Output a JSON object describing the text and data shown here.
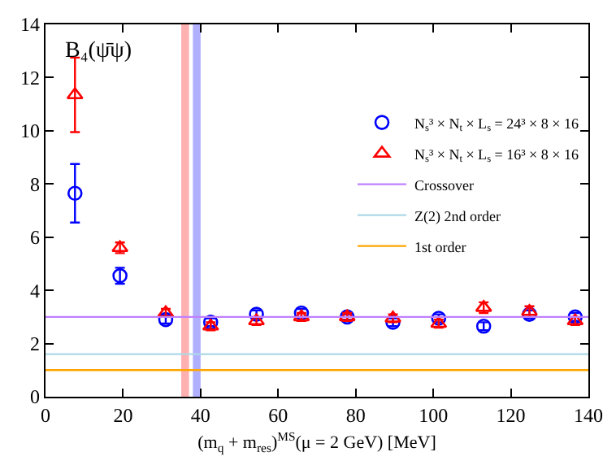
{
  "chart_data": {
    "type": "scatter",
    "title": "B₄(ψ̄ψ)",
    "xlabel": "(m$_{q}$ + m$_{res}$)$^{MS}$(μ = 2 GeV) [MeV]",
    "x": [
      7.6,
      19.2,
      31,
      42.6,
      54.4,
      66,
      77.8,
      89.6,
      101.4,
      113,
      124.8,
      136.6
    ],
    "series": [
      {
        "name": "N$_{s}$³ × N$_{t}$ × L$_{s}$ = 24³ × 8 × 16",
        "color": "#0000ff",
        "marker": "circle",
        "values": [
          7.65,
          4.55,
          2.9,
          2.8,
          3.1,
          3.15,
          3.0,
          2.8,
          2.95,
          2.65,
          3.1,
          3.0
        ],
        "errors": [
          1.1,
          0.3,
          0.15,
          0.15,
          0.15,
          0.15,
          0.1,
          0.15,
          0.15,
          0.15,
          0.15,
          0.15
        ]
      },
      {
        "name": "N$_{s}$³ × N$_{t}$ × L$_{s}$ = 16³ × 8 × 16",
        "color": "#ff0000",
        "marker": "triangle",
        "values": [
          11.35,
          5.6,
          3.15,
          2.65,
          2.85,
          3.0,
          3.0,
          2.95,
          2.75,
          3.35,
          3.2,
          2.85
        ],
        "errors": [
          1.4,
          0.2,
          0.15,
          0.15,
          0.15,
          0.15,
          0.15,
          0.15,
          0.15,
          0.2,
          0.2,
          0.15
        ]
      }
    ],
    "ref_lines": [
      {
        "axis": "y",
        "value": 3.0,
        "label": "Crossover",
        "color": "#c080ff"
      },
      {
        "axis": "y",
        "value": 1.6,
        "label": "Z(2) 2nd order",
        "color": "#add8e6"
      },
      {
        "axis": "y",
        "value": 1.0,
        "label": "1st order",
        "color": "#ffa500"
      }
    ],
    "bands": [
      {
        "axis": "x",
        "from": 35,
        "to": 37,
        "color": "#ffb0b0"
      },
      {
        "axis": "x",
        "from": 38,
        "to": 40,
        "color": "#b0b0ff"
      }
    ],
    "xlim": [
      0,
      140
    ],
    "xticks": [
      0,
      20,
      40,
      60,
      80,
      100,
      120,
      140
    ],
    "ylim": [
      0,
      14
    ],
    "yticks": [
      0,
      2,
      4,
      6,
      8,
      10,
      12,
      14
    ],
    "grid": false,
    "legend": "top right"
  }
}
